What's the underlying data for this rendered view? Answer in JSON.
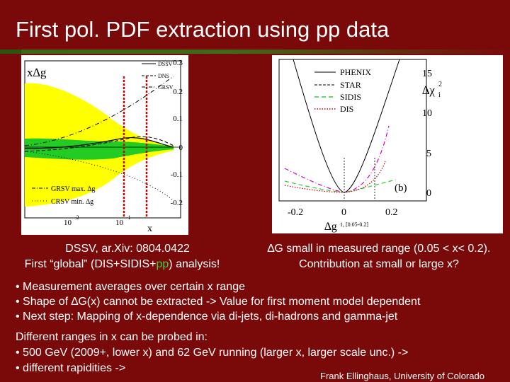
{
  "slide": {
    "title": "First pol. PDF extraction using pp data",
    "left_caption": {
      "line1": "DSSV, ar.Xiv: 0804.0422",
      "line2_prefix": "First “global” (DIS+SIDIS+",
      "line2_highlight": "pp",
      "line2_suffix": ") analysis!"
    },
    "right_caption": {
      "line1": "∆G small in measured range (0.05 < x< 0.2).",
      "line2": "Contribution at small or large x?"
    },
    "bullets": [
      "• Measurement averages over certain x range",
      "• Shape of ∆G(x) cannot be extracted -> Value for first moment model dependent",
      "• Next step: Mapping of x-dependence via di-jets, di-hadrons and gamma-jet"
    ],
    "ranges_heading": "Different ranges in x can be probed in:",
    "ranges_items": [
      "•   500 GeV (2009+, lower x) and 62 GeV running (larger x, larger scale unc.) ->",
      "•   different rapidities ->"
    ],
    "credit": "Frank Ellinghaus, University of Colorado"
  },
  "chart_data": [
    {
      "type": "line",
      "ylabel": "x∆g",
      "xlabel": "x",
      "x_ticks": [
        "10",
        "-2",
        "10",
        "-1"
      ],
      "y_ticks": [
        "0.3",
        "0.2",
        "0.1",
        "0",
        "-0.1",
        "-0.2"
      ],
      "ylim": [
        -0.25,
        0.3
      ],
      "legend": [
        "DSSV",
        "DNS",
        "GRSV"
      ],
      "annotations": [
        "GRSV max. ∆g",
        "CRSV min. ∆g"
      ],
      "colors": {
        "band_outer": "#ffff00",
        "band_inner": "#22cc22",
        "window": "#cc0000"
      }
    },
    {
      "type": "line",
      "ylabel": "∆χ",
      "ylabel_sup": "2",
      "ylabel_sub": "i",
      "xlabel": "∆g",
      "xlabel_sub": "1, [0.05-0.2]",
      "x_ticks": [
        "-0.2",
        "0",
        "0.2"
      ],
      "y_ticks": [
        "15",
        "10",
        "5",
        "0"
      ],
      "legend": [
        "PHENIX",
        "STAR",
        "SIDIS",
        "DIS"
      ],
      "panel_label": "(b)",
      "series": [
        {
          "name": "PHENIX",
          "color": "#000000"
        },
        {
          "name": "STAR",
          "color": "#cc00cc"
        },
        {
          "name": "SIDIS",
          "color": "#33cc33"
        },
        {
          "name": "DIS",
          "color": "#cc0000"
        }
      ]
    }
  ]
}
